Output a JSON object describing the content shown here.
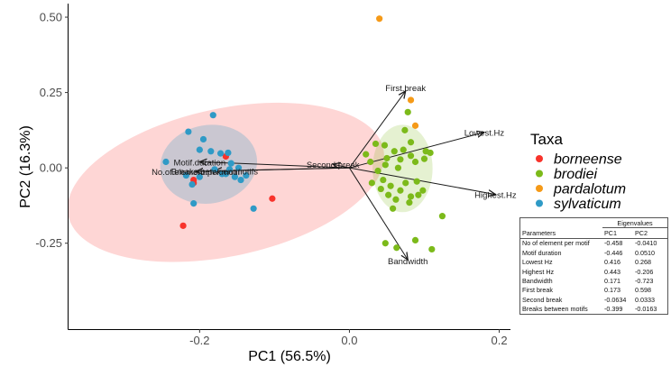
{
  "chart_data": {
    "type": "scatter",
    "xlabel": "PC1 (56.5%)",
    "ylabel": "PC2 (16.3%)",
    "xlim": [
      -0.375,
      0.215
    ],
    "ylim": [
      -0.535,
      0.545
    ],
    "x_ticks": [
      -0.2,
      0.0,
      0.2
    ],
    "x_tick_labels": [
      "-0.2",
      "0.0",
      "0.2"
    ],
    "y_ticks": [
      -0.25,
      0.0,
      0.25,
      0.5
    ],
    "y_tick_labels": [
      "-0.25",
      "0.00",
      "0.25",
      "0.50"
    ],
    "grid": false,
    "legend": {
      "title": "Taxa",
      "position": "right"
    },
    "series": [
      {
        "name": "borneense",
        "color": "#f8332b",
        "points": [
          [
            -0.165,
            0.038
          ],
          [
            -0.208,
            -0.04
          ],
          [
            -0.208,
            -0.05
          ],
          [
            -0.222,
            -0.192
          ],
          [
            -0.103,
            -0.102
          ]
        ]
      },
      {
        "name": "brodiei",
        "color": "#7cba1a",
        "points": [
          [
            0.078,
            0.185
          ],
          [
            0.074,
            0.125
          ],
          [
            0.082,
            0.085
          ],
          [
            0.047,
            0.075
          ],
          [
            0.072,
            0.06
          ],
          [
            0.06,
            0.055
          ],
          [
            0.05,
            0.032
          ],
          [
            0.048,
            0.01
          ],
          [
            0.068,
            0.028
          ],
          [
            0.082,
            0.04
          ],
          [
            0.102,
            0.055
          ],
          [
            0.108,
            0.05
          ],
          [
            0.1,
            0.03
          ],
          [
            0.088,
            0.02
          ],
          [
            0.065,
            0.0
          ],
          [
            0.035,
            0.08
          ],
          [
            0.022,
            0.045
          ],
          [
            0.028,
            0.02
          ],
          [
            0.038,
            -0.01
          ],
          [
            0.045,
            -0.04
          ],
          [
            0.055,
            -0.06
          ],
          [
            0.068,
            -0.075
          ],
          [
            0.075,
            -0.05
          ],
          [
            0.09,
            -0.045
          ],
          [
            0.098,
            -0.075
          ],
          [
            0.082,
            -0.095
          ],
          [
            0.062,
            -0.105
          ],
          [
            0.052,
            -0.09
          ],
          [
            0.042,
            -0.07
          ],
          [
            0.03,
            -0.05
          ],
          [
            0.092,
            -0.09
          ],
          [
            0.08,
            -0.115
          ],
          [
            0.058,
            -0.135
          ],
          [
            0.124,
            -0.16
          ],
          [
            0.048,
            -0.25
          ],
          [
            0.063,
            -0.265
          ],
          [
            0.11,
            -0.27
          ],
          [
            0.088,
            -0.24
          ]
        ]
      },
      {
        "name": "pardalotum",
        "color": "#f59a18",
        "points": [
          [
            0.04,
            0.495
          ],
          [
            0.082,
            0.225
          ],
          [
            0.088,
            0.14
          ]
        ]
      },
      {
        "name": "sylvaticum",
        "color": "#2f9ac6",
        "points": [
          [
            -0.182,
            0.175
          ],
          [
            -0.215,
            0.12
          ],
          [
            -0.195,
            0.095
          ],
          [
            -0.2,
            0.06
          ],
          [
            -0.185,
            0.055
          ],
          [
            -0.172,
            0.048
          ],
          [
            -0.162,
            0.05
          ],
          [
            -0.245,
            0.02
          ],
          [
            -0.158,
            0.015
          ],
          [
            -0.148,
            0.0
          ],
          [
            -0.18,
            -0.005
          ],
          [
            -0.165,
            -0.02
          ],
          [
            -0.153,
            -0.03
          ],
          [
            -0.145,
            -0.04
          ],
          [
            -0.138,
            -0.025
          ],
          [
            -0.2,
            -0.03
          ],
          [
            -0.218,
            -0.025
          ],
          [
            -0.21,
            -0.055
          ],
          [
            -0.208,
            -0.118
          ],
          [
            -0.128,
            -0.135
          ],
          [
            -0.17,
            -0.02
          ],
          [
            -0.16,
            -0.005
          ]
        ]
      }
    ],
    "ellipses": [
      {
        "series": "borneense",
        "center": [
          -0.165,
          -0.048
        ],
        "radii": [
          0.215,
          0.245
        ],
        "rotation_deg": -12,
        "color": "#f8332b",
        "opacity": 0.2
      },
      {
        "series": "sylvaticum",
        "center": [
          -0.188,
          0.012
        ],
        "radii": [
          0.065,
          0.13
        ],
        "rotation_deg": -10,
        "color": "#2f9ac6",
        "opacity": 0.25
      },
      {
        "series": "brodiei",
        "center": [
          0.071,
          -0.002
        ],
        "radii": [
          0.04,
          0.145
        ],
        "rotation_deg": 0,
        "color": "#7cba1a",
        "opacity": 0.2
      }
    ],
    "loadings": {
      "origin": [
        0.0,
        0.0
      ],
      "arrows": [
        {
          "label": "First.break",
          "end": [
            0.075,
            0.255
          ]
        },
        {
          "label": "Lowest.Hz",
          "end": [
            0.18,
            0.118
          ]
        },
        {
          "label": "Highest.Hz",
          "end": [
            0.195,
            -0.088
          ]
        },
        {
          "label": "Bandwidth",
          "end": [
            0.078,
            -0.305
          ]
        },
        {
          "label": "Motif.duration",
          "end": [
            -0.2,
            0.02
          ]
        },
        {
          "label": "No.of.element.per.motif",
          "end": [
            -0.205,
            -0.012
          ]
        },
        {
          "label": "Breaks.between.motifs",
          "end": [
            -0.18,
            -0.01
          ]
        },
        {
          "label": "Second.break",
          "end": [
            -0.022,
            0.012
          ]
        }
      ]
    }
  },
  "legend": {
    "title": "Taxa",
    "items": [
      {
        "label": "borneense",
        "color": "#f8332b"
      },
      {
        "label": "brodiei",
        "color": "#7cba1a"
      },
      {
        "label": "pardalotum",
        "color": "#f59a18"
      },
      {
        "label": "sylvaticum",
        "color": "#2f9ac6"
      }
    ]
  },
  "eigen_table": {
    "group_header": "Eigenvalues",
    "columns": [
      "Parameters",
      "PC1",
      "PC2"
    ],
    "rows": [
      [
        "No of element per motif",
        "-0.458",
        "-0.0410"
      ],
      [
        "Motif duration",
        "-0.446",
        "0.0510"
      ],
      [
        "Lowest Hz",
        "0.416",
        "0.268"
      ],
      [
        "Highest Hz",
        "0.443",
        "-0.206"
      ],
      [
        "Bandwidth",
        "0.171",
        "-0.723"
      ],
      [
        "First break",
        "0.173",
        "0.598"
      ],
      [
        "Second break",
        "-0.0634",
        "0.0333"
      ],
      [
        "Breaks between motifs",
        "-0.399",
        "-0.0163"
      ]
    ]
  }
}
